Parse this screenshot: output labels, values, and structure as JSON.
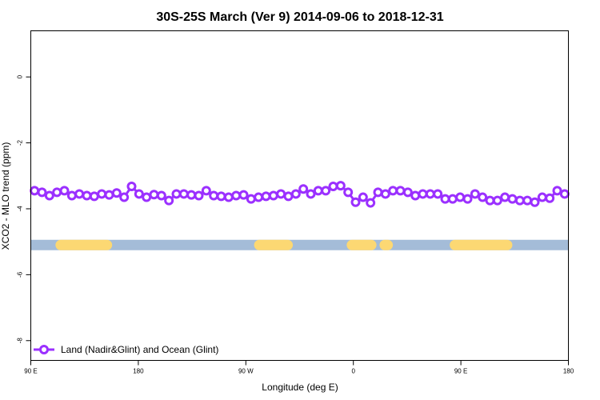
{
  "chart_data": {
    "type": "line",
    "title": "30S-25S March (Ver 9)   2014-09-06 to 2018-12-31",
    "xlabel": "Longitude (deg E)",
    "ylabel": "XCO2 - MLO trend (ppm)",
    "xlim": [
      90,
      450
    ],
    "ylim": [
      -8.6,
      1.4
    ],
    "x_ticks": [
      {
        "value": 90,
        "label": "90 E"
      },
      {
        "value": 162,
        "label": "180"
      },
      {
        "value": 234,
        "label": "90 W"
      },
      {
        "value": 306,
        "label": "0"
      },
      {
        "value": 378,
        "label": "90 E"
      },
      {
        "value": 450,
        "label": "180"
      }
    ],
    "y_ticks": [
      {
        "value": 0,
        "label": "0"
      },
      {
        "value": -2,
        "label": "-2"
      },
      {
        "value": -4,
        "label": "-4"
      },
      {
        "value": -6,
        "label": "-6"
      },
      {
        "value": -8,
        "label": "-8"
      }
    ],
    "grid": false,
    "legend_position": "bottom-left",
    "series": [
      {
        "name": "Land (Nadir&Glint) and Ocean (Glint)",
        "color": "#9b30ff",
        "x": [
          92.5,
          97.5,
          102.5,
          107.5,
          112.5,
          117.5,
          122.5,
          127.5,
          132.5,
          137.5,
          142.5,
          147.5,
          152.5,
          157.5,
          162.5,
          167.5,
          172.5,
          177.5,
          182.5,
          187.5,
          192.5,
          197.5,
          202.5,
          207.5,
          212.5,
          217.5,
          222.5,
          227.5,
          232.5,
          237.5,
          242.5,
          247.5,
          252.5,
          257.5,
          262.5,
          267.5,
          272.5,
          277.5,
          282.5,
          287.5,
          292.5,
          297.5,
          302.5,
          307.5,
          312.5,
          317.5,
          322.5,
          327.5,
          332.5,
          337.5,
          342.5,
          347.5,
          352.5,
          357.5,
          362.5,
          367.5,
          372.5,
          377.5,
          382.5,
          387.5,
          392.5,
          397.5,
          402.5,
          407.5,
          412.5,
          417.5,
          422.5,
          427.5,
          432.5,
          437.5,
          442.5,
          447.5
        ],
        "values": [
          -3.45,
          -3.5,
          -3.6,
          -3.5,
          -3.45,
          -3.6,
          -3.55,
          -3.6,
          -3.62,
          -3.55,
          -3.58,
          -3.52,
          -3.65,
          -3.32,
          -3.55,
          -3.65,
          -3.57,
          -3.6,
          -3.75,
          -3.55,
          -3.55,
          -3.58,
          -3.6,
          -3.45,
          -3.6,
          -3.62,
          -3.65,
          -3.6,
          -3.58,
          -3.7,
          -3.65,
          -3.62,
          -3.6,
          -3.55,
          -3.62,
          -3.55,
          -3.4,
          -3.55,
          -3.45,
          -3.45,
          -3.32,
          -3.3,
          -3.5,
          -3.8,
          -3.65,
          -3.82,
          -3.5,
          -3.55,
          -3.45,
          -3.45,
          -3.5,
          -3.6,
          -3.55,
          -3.55,
          -3.55,
          -3.7,
          -3.7,
          -3.65,
          -3.7,
          -3.55,
          -3.65,
          -3.75,
          -3.75,
          -3.65,
          -3.7,
          -3.75,
          -3.75,
          -3.8,
          -3.65,
          -3.68,
          -3.45,
          -3.55
        ]
      }
    ],
    "surface_band": {
      "y": -5.1,
      "ocean_color": "#a4bcd8",
      "land_color": "#fcd873",
      "land_segments": [
        [
          110,
          141
        ],
        [
          243,
          262
        ],
        [
          305,
          318
        ],
        [
          327,
          329
        ],
        [
          374,
          409
        ]
      ]
    }
  }
}
